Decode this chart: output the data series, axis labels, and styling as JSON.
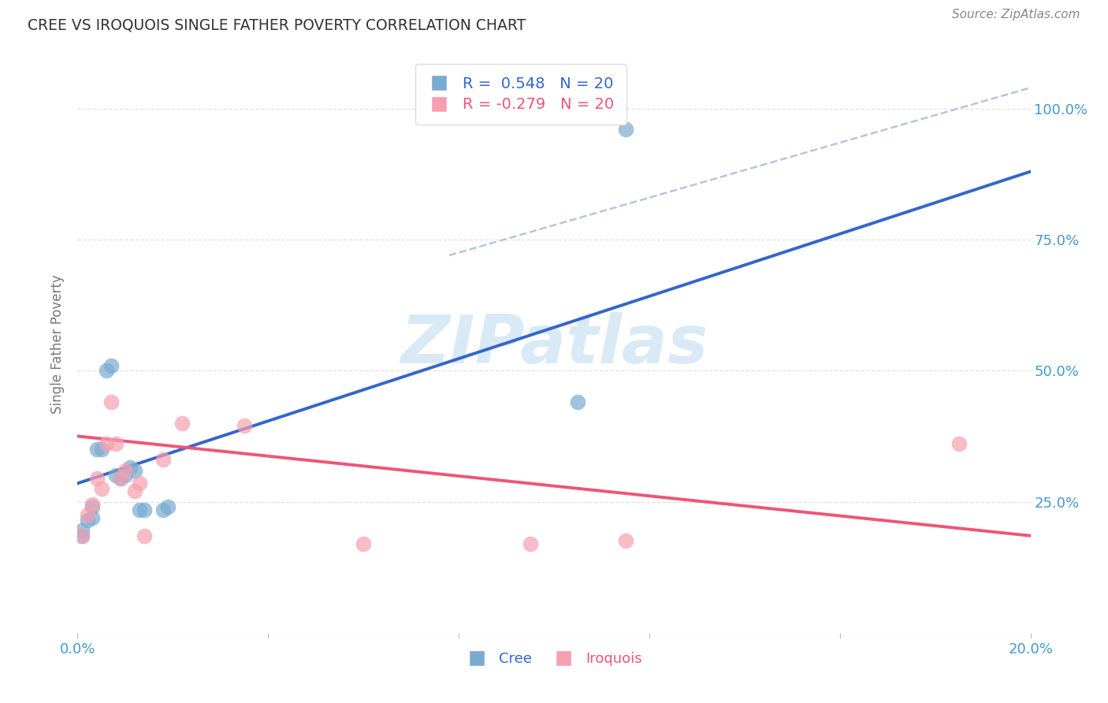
{
  "title": "CREE VS IROQUOIS SINGLE FATHER POVERTY CORRELATION CHART",
  "source": "Source: ZipAtlas.com",
  "ylabel": "Single Father Poverty",
  "xlim": [
    0.0,
    0.2
  ],
  "ylim": [
    0.0,
    1.1
  ],
  "cree_color": "#7AAAD0",
  "iroquois_color": "#F5A0B0",
  "cree_line_color": "#3366CC",
  "iroquois_line_color": "#EE5577",
  "background_color": "#FFFFFF",
  "watermark": "ZIPatlas",
  "cree_x": [
    0.001,
    0.001,
    0.002,
    0.003,
    0.003,
    0.004,
    0.005,
    0.006,
    0.007,
    0.008,
    0.009,
    0.01,
    0.011,
    0.012,
    0.013,
    0.014,
    0.018,
    0.019,
    0.105,
    0.115
  ],
  "cree_y": [
    0.185,
    0.195,
    0.215,
    0.22,
    0.24,
    0.35,
    0.35,
    0.5,
    0.51,
    0.3,
    0.295,
    0.3,
    0.315,
    0.31,
    0.235,
    0.235,
    0.235,
    0.24,
    0.44,
    0.96
  ],
  "iroquois_x": [
    0.001,
    0.002,
    0.003,
    0.004,
    0.005,
    0.006,
    0.007,
    0.008,
    0.009,
    0.01,
    0.012,
    0.013,
    0.014,
    0.018,
    0.022,
    0.035,
    0.06,
    0.095,
    0.115,
    0.185
  ],
  "iroquois_y": [
    0.185,
    0.225,
    0.245,
    0.295,
    0.275,
    0.36,
    0.44,
    0.36,
    0.295,
    0.31,
    0.27,
    0.285,
    0.185,
    0.33,
    0.4,
    0.395,
    0.17,
    0.17,
    0.175,
    0.36
  ],
  "cree_trendline_x": [
    0.0,
    0.2
  ],
  "cree_trendline_y": [
    0.285,
    0.88
  ],
  "iroquois_trendline_x": [
    0.0,
    0.2
  ],
  "iroquois_trendline_y": [
    0.375,
    0.185
  ],
  "ref_line_x": [
    0.078,
    0.2
  ],
  "ref_line_y": [
    0.72,
    1.04
  ],
  "legend_cree_R": "0.548",
  "legend_cree_N": "20",
  "legend_iroquois_R": "-0.279",
  "legend_iroquois_N": "20"
}
